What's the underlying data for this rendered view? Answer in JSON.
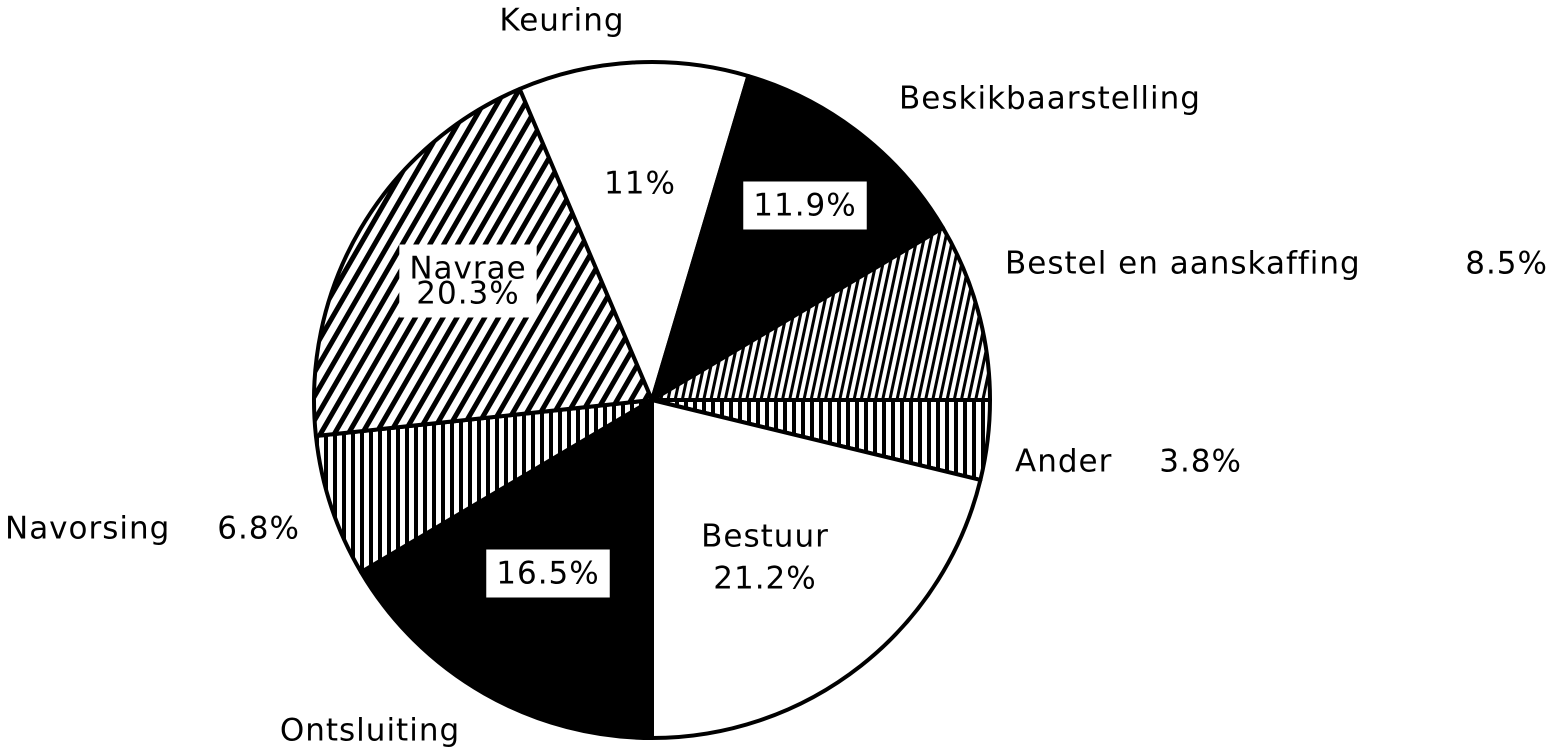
{
  "chart_data": {
    "type": "pie",
    "categories": [
      "Ontsluiting",
      "Navorsing",
      "Navrae",
      "Keuring",
      "Beskikbaarstelling",
      "Bestel en aanskaffing",
      "Ander",
      "Bestuur"
    ],
    "values": [
      16.5,
      6.8,
      20.3,
      11,
      11.9,
      8.5,
      3.8,
      21.2
    ],
    "value_labels": [
      "16.5%",
      "6.8%",
      "20.3%",
      "11%",
      "11.9%",
      "8.5%",
      "3.8%",
      "21.2%"
    ],
    "colors": [
      "black",
      "vstripe",
      "diagonal",
      "white",
      "black",
      "fine-vstripe",
      "vstripe",
      "white"
    ],
    "start_angle": 180,
    "direction": "clockwise"
  }
}
